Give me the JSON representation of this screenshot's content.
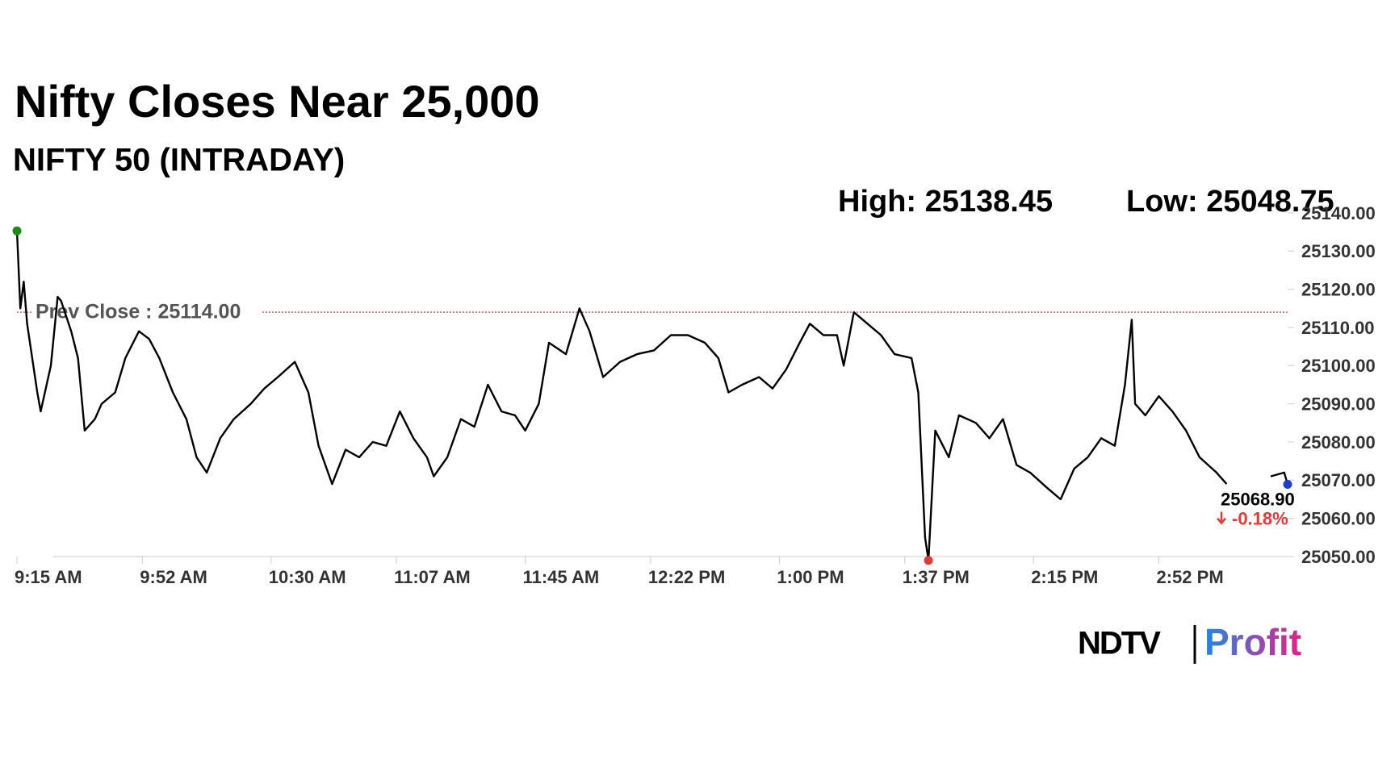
{
  "chart_data": {
    "type": "line",
    "title": "Nifty Closes Near 25,000",
    "subtitle": "NIFTY 50 (INTRADAY)",
    "high_label": "High: 25138.45",
    "low_label": "Low: 25048.75",
    "prev_close": 25114,
    "prev_close_label": "Prev Close : 25114.00",
    "last_value_label": "25068.90",
    "change_label": "-0.18%",
    "brand": "NDTV",
    "brand_sub": "Profit",
    "color": "#000000",
    "x": [
      555,
      556,
      557,
      558,
      561,
      562,
      565,
      567,
      568,
      571,
      573,
      575,
      578,
      580,
      584,
      587,
      591,
      594,
      597,
      601,
      605,
      608,
      611,
      615,
      619,
      624,
      628,
      632,
      637,
      641,
      644,
      648,
      652,
      656,
      660,
      664,
      668,
      672,
      676,
      678,
      682,
      686,
      690,
      694,
      698,
      702,
      705,
      709,
      712,
      717,
      721,
      724,
      728,
      733,
      738,
      743,
      748,
      753,
      758,
      762,
      765,
      769,
      774,
      778,
      782,
      786,
      789,
      793,
      797,
      799,
      802,
      806,
      810,
      814,
      819,
      821,
      823,
      824,
      826,
      830,
      833,
      838,
      842,
      846,
      850,
      854,
      859,
      863,
      867,
      871,
      875,
      879,
      882,
      884,
      885,
      888,
      892,
      896,
      900,
      904,
      909,
      912,
      918,
      925,
      929,
      930
    ],
    "values": [
      25135.3,
      25115,
      25122,
      25111,
      25093,
      25088,
      25100,
      25118,
      25117,
      25109,
      25102,
      25083,
      25086,
      25090,
      25093,
      25102,
      25109,
      25107,
      25102,
      25093,
      25086,
      25076,
      25072,
      25081,
      25086,
      25090,
      25094,
      25097,
      25101,
      25093,
      25079,
      25069,
      25078,
      25076,
      25080,
      25079,
      25088,
      25081,
      25076,
      25071,
      25076,
      25086,
      25084,
      25095,
      25088,
      25087,
      25083,
      25090,
      25106,
      25103,
      25115,
      25109,
      25097,
      25101,
      25103,
      25104,
      25108,
      25108,
      25106,
      25102,
      25093,
      25095,
      25097,
      25094,
      25099,
      25106,
      25111,
      25108,
      25108,
      25100,
      25114,
      25111,
      25108,
      25103,
      25102,
      25093,
      25055,
      25049,
      25083,
      25076,
      25087,
      25085,
      25081,
      25086,
      25074,
      25072,
      25068,
      25065,
      25073,
      25076,
      25081,
      25079,
      25095,
      25112,
      25090,
      25087,
      25092,
      25088,
      25083,
      25076,
      25072,
      25069,
      null,
      25071,
      25072,
      25068.9
    ],
    "xlim": [
      555,
      930
    ],
    "xticks": [
      {
        "value": 555,
        "label": "9:15 AM"
      },
      {
        "value": 592,
        "label": "9:52 AM"
      },
      {
        "value": 630,
        "label": "10:30 AM"
      },
      {
        "value": 667,
        "label": "11:07 AM"
      },
      {
        "value": 705,
        "label": "11:45 AM"
      },
      {
        "value": 742,
        "label": "12:22 PM"
      },
      {
        "value": 780,
        "label": "1:00 PM"
      },
      {
        "value": 817,
        "label": "1:37 PM"
      },
      {
        "value": 855,
        "label": "2:15 PM"
      },
      {
        "value": 892,
        "label": "2:52 PM"
      }
    ],
    "ylim": [
      25050,
      25140
    ],
    "yticks": [
      {
        "value": 25050,
        "label": "25050.00"
      },
      {
        "value": 25060,
        "label": "25060.00"
      },
      {
        "value": 25070,
        "label": "25070.00"
      },
      {
        "value": 25080,
        "label": "25080.00"
      },
      {
        "value": 25090,
        "label": "25090.00"
      },
      {
        "value": 25100,
        "label": "25100.00"
      },
      {
        "value": 25110,
        "label": "25110.00"
      },
      {
        "value": 25120,
        "label": "25120.00"
      },
      {
        "value": 25130,
        "label": "25130.00"
      },
      {
        "value": 25140,
        "label": "25140.00"
      }
    ]
  }
}
